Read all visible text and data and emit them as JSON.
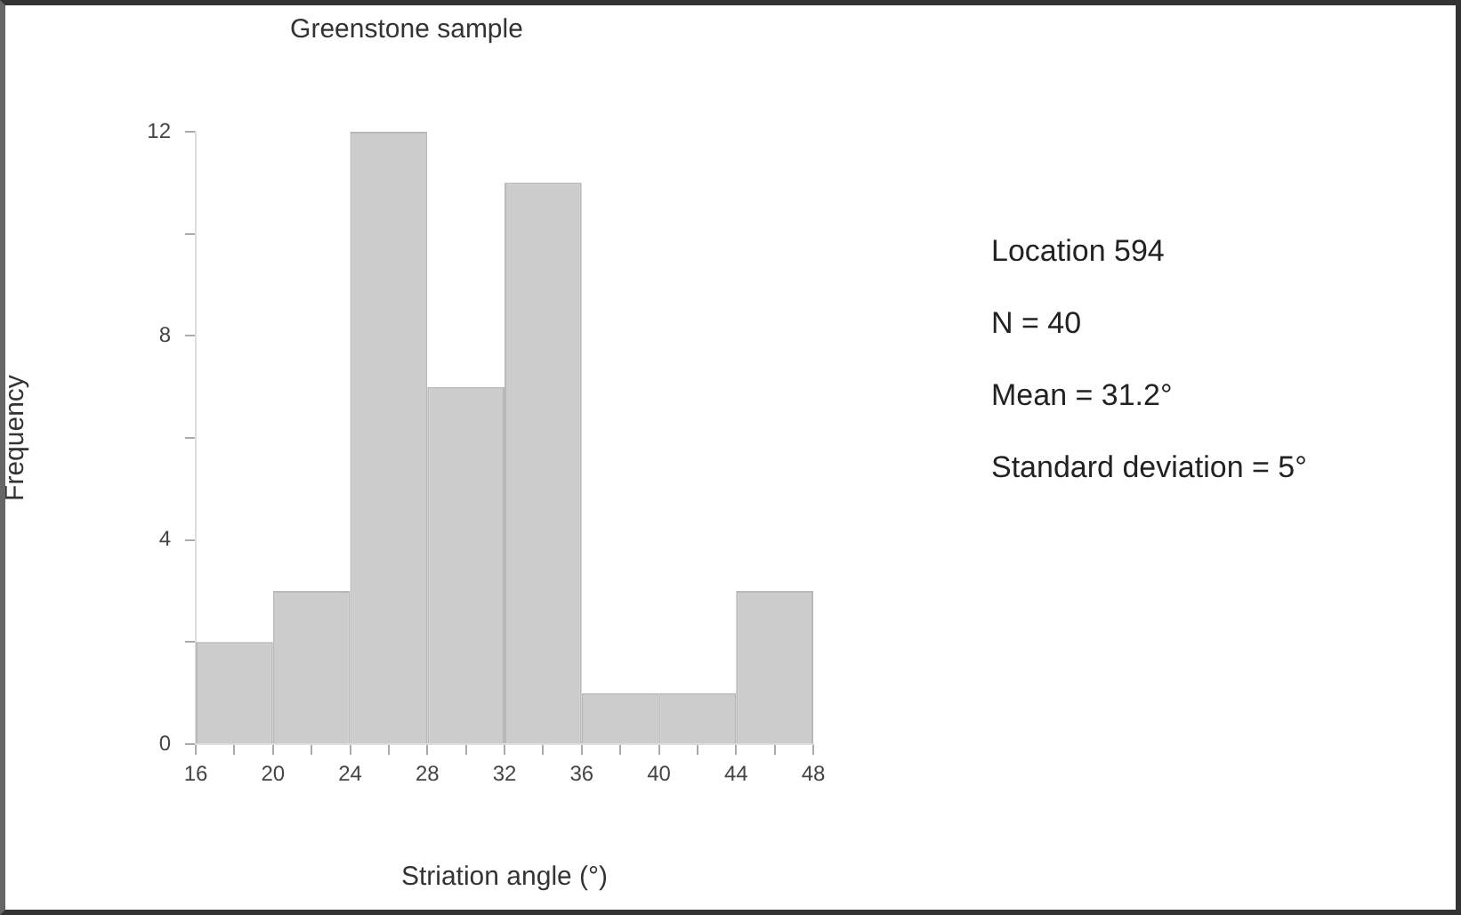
{
  "chart_data": {
    "type": "histogram",
    "title": "Greenstone sample",
    "xlabel": "Striation angle (°)",
    "ylabel": "Frequency",
    "bins": [
      16,
      20,
      24,
      28,
      32,
      36,
      40,
      44,
      48
    ],
    "values": [
      2,
      3,
      12,
      7,
      11,
      1,
      1,
      3
    ],
    "color": "#cccccc",
    "xlim": [
      16,
      48
    ],
    "xticks": [
      16,
      {
        "value": 18,
        "label": null
      },
      20,
      {
        "value": 22,
        "label": null
      },
      24,
      {
        "value": 26,
        "label": null
      },
      28,
      {
        "value": 30,
        "label": null
      },
      32,
      {
        "value": 34,
        "label": null
      },
      36,
      {
        "value": 38,
        "label": null
      },
      40,
      {
        "value": 42,
        "label": null
      },
      44,
      {
        "value": 46,
        "label": null
      },
      48
    ],
    "ylim": [
      0,
      12
    ],
    "yticks": [
      0,
      {
        "value": 2,
        "label": null
      },
      4,
      {
        "value": 6,
        "label": null
      },
      8,
      {
        "value": 10,
        "label": null
      },
      12
    ],
    "grid": false,
    "legend": false,
    "annotations": [
      "Location 594",
      "N = 40",
      "Mean = 31.2°",
      "Standard deviation = 5°"
    ]
  }
}
